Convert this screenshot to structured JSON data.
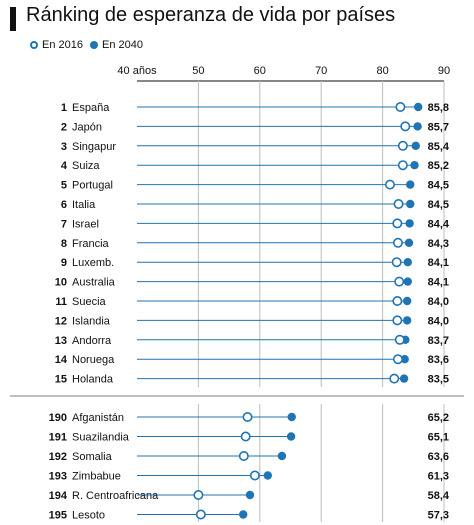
{
  "chart_data": {
    "type": "dot",
    "title": "Ránking de esperanza de vida por países",
    "legend": {
      "placement": "top-left",
      "entries": [
        {
          "label": "En 2016",
          "marker": "open-circle"
        },
        {
          "label": "En 2040",
          "marker": "filled-circle"
        }
      ]
    },
    "x_axis": {
      "position": "top",
      "range": [
        40,
        90
      ],
      "ticks": [
        40,
        50,
        60,
        70,
        80,
        90
      ],
      "tick_labels": [
        "40 años",
        "50",
        "60",
        "70",
        "80",
        "90"
      ],
      "grid": true
    },
    "colors": {
      "marker": "#1f74b4",
      "line": "#1f74b4",
      "grid": "#bdbdbd",
      "separator": "#999999"
    },
    "groups": [
      {
        "rows": [
          {
            "rank": "1",
            "country": "España",
            "y2016": 82.9,
            "y2040": 85.8,
            "label": "85,8"
          },
          {
            "rank": "2",
            "country": "Japón",
            "y2016": 83.7,
            "y2040": 85.7,
            "label": "85,7"
          },
          {
            "rank": "3",
            "country": "Singapur",
            "y2016": 83.3,
            "y2040": 85.4,
            "label": "85,4"
          },
          {
            "rank": "4",
            "country": "Suiza",
            "y2016": 83.3,
            "y2040": 85.2,
            "label": "85,2"
          },
          {
            "rank": "5",
            "country": "Portugal",
            "y2016": 81.2,
            "y2040": 84.5,
            "label": "84,5"
          },
          {
            "rank": "6",
            "country": "Italia",
            "y2016": 82.6,
            "y2040": 84.5,
            "label": "84,5"
          },
          {
            "rank": "7",
            "country": "Israel",
            "y2016": 82.4,
            "y2040": 84.4,
            "label": "84,4"
          },
          {
            "rank": "8",
            "country": "Francia",
            "y2016": 82.5,
            "y2040": 84.3,
            "label": "84,3"
          },
          {
            "rank": "9",
            "country": "Luxemb.",
            "y2016": 82.3,
            "y2040": 84.1,
            "label": "84,1"
          },
          {
            "rank": "10",
            "country": "Australia",
            "y2016": 82.7,
            "y2040": 84.1,
            "label": "84,1"
          },
          {
            "rank": "11",
            "country": "Suecia",
            "y2016": 82.4,
            "y2040": 84.0,
            "label": "84,0"
          },
          {
            "rank": "12",
            "country": "Islandia",
            "y2016": 82.4,
            "y2040": 84.0,
            "label": "84,0"
          },
          {
            "rank": "13",
            "country": "Andorra",
            "y2016": 82.8,
            "y2040": 83.7,
            "label": "83,7"
          },
          {
            "rank": "14",
            "country": "Noruega",
            "y2016": 82.5,
            "y2040": 83.6,
            "label": "83,6"
          },
          {
            "rank": "15",
            "country": "Holanda",
            "y2016": 81.9,
            "y2040": 83.5,
            "label": "83,5"
          }
        ]
      },
      {
        "rows": [
          {
            "rank": "190",
            "country": "Afganistán",
            "y2016": 58.0,
            "y2040": 65.2,
            "label": "65,2"
          },
          {
            "rank": "191",
            "country": "Suazilandia",
            "y2016": 57.7,
            "y2040": 65.1,
            "label": "65,1"
          },
          {
            "rank": "192",
            "country": "Somalia",
            "y2016": 57.4,
            "y2040": 63.6,
            "label": "63,6"
          },
          {
            "rank": "193",
            "country": "Zimbabue",
            "y2016": 59.2,
            "y2040": 61.3,
            "label": "61,3"
          },
          {
            "rank": "194",
            "country": "R. Centroafricana",
            "y2016": 50.0,
            "y2040": 58.4,
            "label": "58,4"
          },
          {
            "rank": "195",
            "country": "Lesoto",
            "y2016": 50.4,
            "y2040": 57.3,
            "label": "57,3"
          }
        ]
      }
    ]
  }
}
